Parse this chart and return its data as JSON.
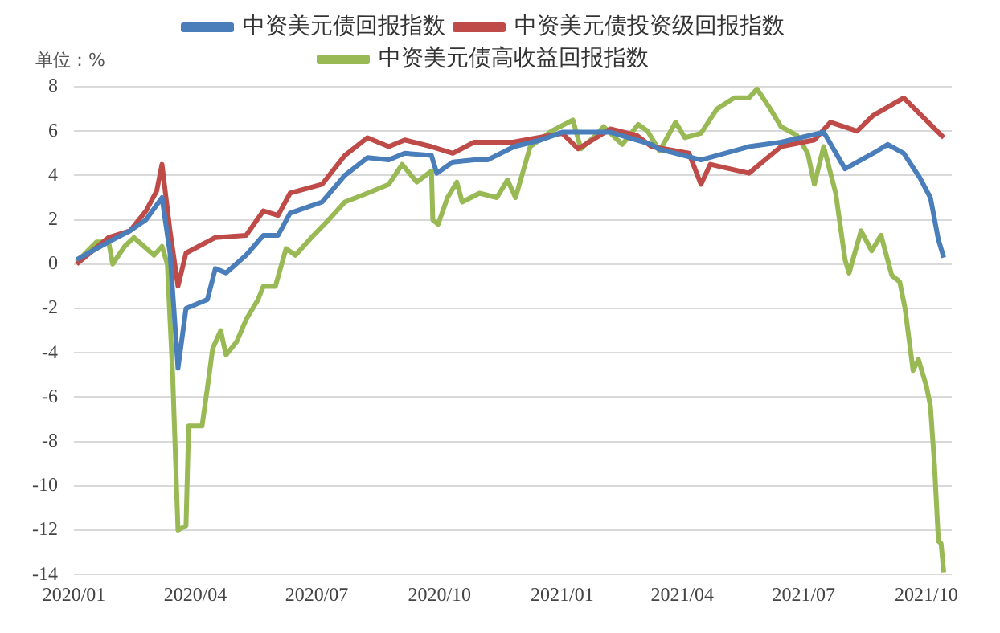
{
  "chart_data": {
    "type": "line",
    "annotations": [
      "单位：%"
    ],
    "xlim": [
      "2020-01-01",
      "2021-10-20"
    ],
    "xticks": [
      {
        "value": "2020-01-01",
        "label": "2020/01"
      },
      {
        "value": "2020-04-01",
        "label": "2020/04"
      },
      {
        "value": "2020-07-01",
        "label": "2020/07"
      },
      {
        "value": "2020-10-01",
        "label": "2020/10"
      },
      {
        "value": "2021-01-01",
        "label": "2021/01"
      },
      {
        "value": "2021-04-01",
        "label": "2021/04"
      },
      {
        "value": "2021-07-01",
        "label": "2021/07"
      },
      {
        "value": "2021-10-01",
        "label": "2021/10"
      }
    ],
    "ylim": [
      -14,
      8
    ],
    "yticks": [
      -14,
      -12,
      -10,
      -8,
      -6,
      -4,
      -2,
      0,
      2,
      4,
      6,
      8
    ],
    "grid": "y",
    "legend": "top",
    "marker": "none",
    "line_style": "solid",
    "series": [
      {
        "name": "中资美元债回报指数",
        "color": "#4a7ebb",
        "x": [
          "2020-01-03",
          "2020-01-27",
          "2020-02-12",
          "2020-02-24",
          "2020-03-07",
          "2020-03-13",
          "2020-03-19",
          "2020-03-25",
          "2020-04-10",
          "2020-04-16",
          "2020-04-24",
          "2020-05-09",
          "2020-05-22",
          "2020-06-02",
          "2020-06-11",
          "2020-07-05",
          "2020-07-22",
          "2020-08-08",
          "2020-08-24",
          "2020-09-05",
          "2020-09-25",
          "2020-09-29",
          "2020-10-11",
          "2020-10-27",
          "2020-11-06",
          "2020-11-26",
          "2020-12-16",
          "2021-01-01",
          "2021-02-06",
          "2021-03-09",
          "2021-03-14",
          "2021-04-15",
          "2021-05-21",
          "2021-06-14",
          "2021-07-16",
          "2021-08-01",
          "2021-08-25",
          "2021-09-02",
          "2021-09-14",
          "2021-09-26",
          "2021-10-04",
          "2021-10-10",
          "2021-10-14"
        ],
        "values": [
          0.2,
          1.0,
          1.5,
          2.0,
          3.0,
          0.5,
          -4.7,
          -2.0,
          -1.6,
          -0.2,
          -0.4,
          0.4,
          1.3,
          1.3,
          2.3,
          2.8,
          4.0,
          4.8,
          4.7,
          5.0,
          4.9,
          4.1,
          4.6,
          4.7,
          4.7,
          5.3,
          5.6,
          5.95,
          5.95,
          5.4,
          5.2,
          4.7,
          5.3,
          5.5,
          5.95,
          4.3,
          5.1,
          5.4,
          5.0,
          3.9,
          3.0,
          1.1,
          0.3
        ]
      },
      {
        "name": "中资美元债投资级回报指数",
        "color": "#be4b48",
        "x": [
          "2020-01-03",
          "2020-01-27",
          "2020-02-12",
          "2020-02-24",
          "2020-03-03",
          "2020-03-07",
          "2020-03-13",
          "2020-03-19",
          "2020-03-25",
          "2020-04-16",
          "2020-05-09",
          "2020-05-22",
          "2020-06-02",
          "2020-06-11",
          "2020-07-05",
          "2020-07-22",
          "2020-08-08",
          "2020-08-24",
          "2020-09-05",
          "2020-09-25",
          "2020-10-11",
          "2020-10-27",
          "2020-11-25",
          "2021-01-01",
          "2021-01-13",
          "2021-02-06",
          "2021-02-26",
          "2021-03-09",
          "2021-04-06",
          "2021-04-15",
          "2021-04-22",
          "2021-05-21",
          "2021-06-14",
          "2021-07-09",
          "2021-07-21",
          "2021-08-10",
          "2021-08-22",
          "2021-09-14",
          "2021-10-04",
          "2021-10-14"
        ],
        "values": [
          0.0,
          1.2,
          1.5,
          2.4,
          3.3,
          4.5,
          1.5,
          -1.0,
          0.5,
          1.2,
          1.3,
          2.4,
          2.2,
          3.2,
          3.6,
          4.9,
          5.7,
          5.3,
          5.6,
          5.3,
          5.0,
          5.5,
          5.5,
          5.9,
          5.2,
          6.1,
          5.8,
          5.3,
          5.0,
          3.6,
          4.5,
          4.1,
          5.3,
          5.6,
          6.4,
          6.0,
          6.7,
          7.5,
          6.3,
          5.7
        ]
      },
      {
        "name": "中资美元债高收益回报指数",
        "color": "#98b954",
        "x": [
          "2020-01-03",
          "2020-01-18",
          "2020-01-27",
          "2020-01-30",
          "2020-02-08",
          "2020-02-15",
          "2020-03-01",
          "2020-03-07",
          "2020-03-11",
          "2020-03-15",
          "2020-03-19",
          "2020-03-25",
          "2020-03-27",
          "2020-04-06",
          "2020-04-10",
          "2020-04-14",
          "2020-04-20",
          "2020-04-24",
          "2020-05-02",
          "2020-05-09",
          "2020-05-18",
          "2020-05-22",
          "2020-05-31",
          "2020-06-08",
          "2020-06-15",
          "2020-06-27",
          "2020-07-10",
          "2020-07-22",
          "2020-08-08",
          "2020-08-24",
          "2020-09-03",
          "2020-09-14",
          "2020-09-25",
          "2020-09-26",
          "2020-09-30",
          "2020-10-07",
          "2020-10-14",
          "2020-10-18",
          "2020-10-31",
          "2020-11-13",
          "2020-11-21",
          "2020-11-27",
          "2020-12-08",
          "2020-12-24",
          "2021-01-09",
          "2021-01-15",
          "2021-01-26",
          "2021-02-01",
          "2021-02-15",
          "2021-02-27",
          "2021-03-06",
          "2021-03-15",
          "2021-03-27",
          "2021-04-03",
          "2021-04-15",
          "2021-04-27",
          "2021-05-10",
          "2021-05-21",
          "2021-05-27",
          "2021-06-06",
          "2021-06-14",
          "2021-06-26",
          "2021-07-04",
          "2021-07-09",
          "2021-07-16",
          "2021-07-25",
          "2021-08-01",
          "2021-08-04",
          "2021-08-13",
          "2021-08-21",
          "2021-08-28",
          "2021-09-05",
          "2021-09-11",
          "2021-09-15",
          "2021-09-21",
          "2021-09-25",
          "2021-10-01",
          "2021-10-04",
          "2021-10-07",
          "2021-10-10",
          "2021-10-12",
          "2021-10-14"
        ],
        "values": [
          0.1,
          1.0,
          1.0,
          0.0,
          0.8,
          1.2,
          0.4,
          0.8,
          0.0,
          -5.0,
          -12.0,
          -11.8,
          -7.3,
          -7.3,
          -5.6,
          -3.8,
          -3.0,
          -4.1,
          -3.5,
          -2.5,
          -1.6,
          -1.0,
          -1.0,
          0.7,
          0.4,
          1.2,
          2.0,
          2.8,
          3.2,
          3.6,
          4.5,
          3.7,
          4.2,
          2.0,
          1.8,
          3.0,
          3.7,
          2.8,
          3.2,
          3.0,
          3.8,
          3.0,
          5.3,
          6.0,
          6.5,
          5.2,
          5.8,
          6.2,
          5.4,
          6.3,
          6.0,
          5.1,
          6.4,
          5.7,
          5.9,
          7.0,
          7.5,
          7.5,
          7.9,
          7.0,
          6.2,
          5.8,
          5.0,
          3.6,
          5.3,
          3.2,
          0.2,
          -0.4,
          1.5,
          0.6,
          1.3,
          -0.5,
          -0.8,
          -2.0,
          -4.8,
          -4.3,
          -5.5,
          -6.4,
          -9.0,
          -12.5,
          -12.6,
          -13.9
        ]
      }
    ]
  }
}
